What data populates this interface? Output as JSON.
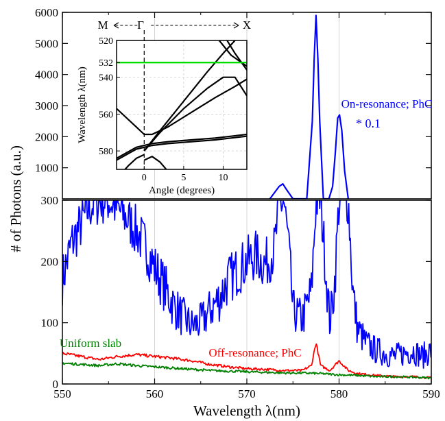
{
  "chart_data": [
    {
      "panel": "upper-main",
      "type": "line",
      "ylim": [
        0,
        6000
      ],
      "y_ticks": [
        1000,
        2000,
        3000,
        4000,
        5000,
        6000
      ],
      "series": [
        {
          "name": "On-resonance; PhC",
          "scale_note": "* 0.1",
          "color": "#0000ff",
          "x": [
            572.5,
            573.5,
            573.9,
            574.3,
            575,
            576.5,
            577.1,
            577.3,
            577.5,
            577.7,
            577.9,
            578.3,
            578.9,
            579.3,
            579.6,
            579.85,
            580.05,
            580.3,
            580.6,
            581.0
          ],
          "y": [
            0,
            400,
            480,
            300,
            0,
            0,
            2500,
            4500,
            5900,
            4500,
            2500,
            0,
            0,
            400,
            1500,
            2600,
            2700,
            2200,
            900,
            0
          ]
        }
      ]
    },
    {
      "panel": "lower-main",
      "type": "line",
      "xlabel": "Wavelength λ(nm)",
      "ylabel": "# of Photons (a.u.)",
      "xlim": [
        550,
        590
      ],
      "ylim": [
        0,
        300
      ],
      "x_ticks": [
        550,
        560,
        570,
        580,
        590
      ],
      "y_ticks": [
        0,
        100,
        200,
        300
      ],
      "series": [
        {
          "name": "On-resonance; PhC",
          "color": "#0000ff",
          "x": [
            550,
            551,
            552,
            553,
            554,
            555,
            556,
            557,
            558,
            559,
            560,
            561,
            562,
            563,
            564,
            565,
            566,
            567,
            568,
            569,
            570,
            571,
            572,
            573,
            573.5,
            574,
            574.5,
            575,
            576,
            577,
            577.5,
            578,
            578.5,
            579,
            579.5,
            580,
            580.5,
            581,
            581.5,
            582,
            583,
            584,
            585,
            586,
            587,
            588,
            589,
            590
          ],
          "y": [
            170,
            230,
            260,
            290,
            300,
            300,
            285,
            270,
            250,
            225,
            190,
            160,
            130,
            110,
            95,
            100,
            120,
            140,
            170,
            185,
            200,
            210,
            195,
            220,
            290,
            300,
            230,
            120,
            105,
            150,
            300,
            300,
            200,
            100,
            160,
            300,
            300,
            300,
            150,
            90,
            65,
            55,
            50,
            45,
            50,
            55,
            45,
            55
          ]
        },
        {
          "name": "Off-resonance; PhC",
          "color": "#ff0000",
          "x": [
            550,
            552,
            554,
            556,
            558,
            560,
            562,
            564,
            566,
            568,
            570,
            572,
            574,
            576,
            577,
            577.5,
            578,
            579,
            580,
            581,
            582,
            584,
            586,
            588,
            590
          ],
          "y": [
            50,
            45,
            40,
            45,
            48,
            45,
            42,
            38,
            32,
            28,
            25,
            24,
            22,
            22,
            30,
            68,
            30,
            22,
            38,
            22,
            17,
            14,
            12,
            12,
            10
          ]
        },
        {
          "name": "Uniform slab",
          "color": "#008000",
          "x": [
            550,
            552,
            554,
            556,
            558,
            560,
            562,
            564,
            566,
            568,
            570,
            572,
            574,
            576,
            578,
            580,
            582,
            584,
            586,
            588,
            590
          ],
          "y": [
            34,
            32,
            30,
            33,
            30,
            28,
            26,
            24,
            22,
            21,
            20,
            19,
            18,
            18,
            17,
            15,
            14,
            12,
            12,
            11,
            10
          ]
        }
      ]
    },
    {
      "panel": "inset",
      "type": "line",
      "xlabel": "Angle (degrees)",
      "ylabel": "Wavelength λ(nm)",
      "xlim": [
        -3.5,
        13
      ],
      "ylim": [
        520,
        590
      ],
      "x_ticks": [
        0,
        5,
        10
      ],
      "y_ticks": [
        520,
        532,
        540,
        560,
        580
      ],
      "top_labels": {
        "left": "M",
        "center": "Γ",
        "right": "X"
      },
      "highlight_line": {
        "y": 532,
        "color": "#00dd00"
      },
      "bands": [
        {
          "x": [
            -3.5,
            -1,
            0,
            1,
            3,
            6,
            9,
            11.5,
            13
          ],
          "y": [
            557,
            567,
            571,
            571,
            567,
            559,
            551,
            545,
            541
          ]
        },
        {
          "x": [
            -3.5,
            -1,
            0,
            1,
            3,
            6,
            9,
            11,
            13
          ],
          "y": [
            584,
            578,
            577,
            576,
            575,
            574,
            573,
            572,
            571
          ]
        },
        {
          "x": [
            -3.5,
            -1,
            0,
            1,
            3,
            6,
            9,
            11,
            13
          ],
          "y": [
            585,
            579,
            578,
            577,
            576,
            575,
            574,
            573,
            572
          ]
        },
        {
          "x": [
            0,
            2,
            5,
            8,
            10,
            11.5,
            13
          ],
          "y": [
            580,
            569,
            553,
            537,
            527,
            520,
            514
          ]
        },
        {
          "x": [
            0,
            2,
            5,
            8,
            10,
            11.5,
            13
          ],
          "y": [
            580,
            570,
            557,
            546,
            540,
            540,
            550
          ]
        },
        {
          "x": [
            0,
            1,
            2,
            3
          ],
          "y": [
            585,
            583,
            586,
            591
          ]
        },
        {
          "x": [
            -3.5,
            -2,
            -1,
            0
          ],
          "y": [
            595,
            588,
            584,
            582
          ]
        },
        {
          "x": [
            9.5,
            11,
            13
          ],
          "y": [
            520,
            528,
            534
          ]
        },
        {
          "x": [
            10.5,
            11.5,
            13
          ],
          "y": [
            520,
            527,
            536
          ]
        }
      ]
    }
  ]
}
